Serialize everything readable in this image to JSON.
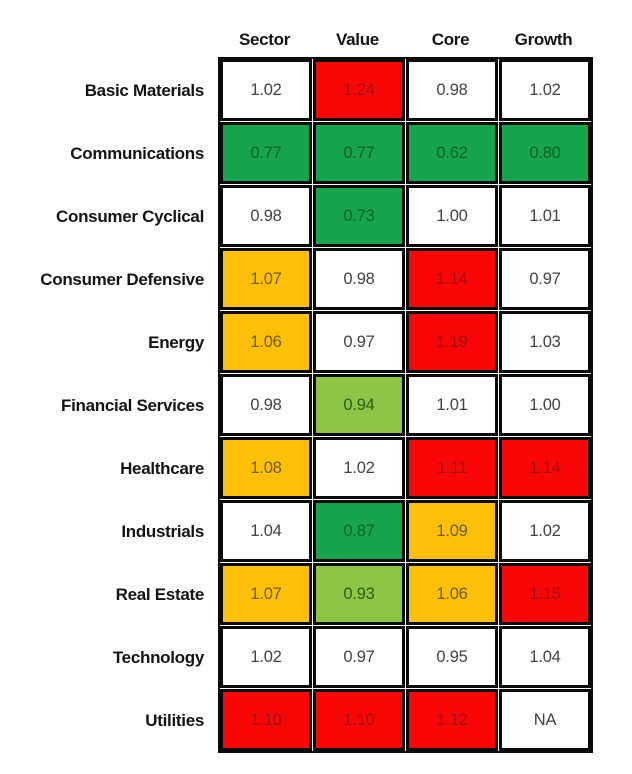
{
  "chart_data": {
    "type": "heatmap",
    "columns": [
      "Sector",
      "Value",
      "Core",
      "Growth"
    ],
    "rows": [
      {
        "label": "Basic Materials",
        "values": [
          "1.02",
          "1.24",
          "0.98",
          "1.02"
        ],
        "colors": [
          "white",
          "red",
          "white",
          "white"
        ]
      },
      {
        "label": "Communications",
        "values": [
          "0.77",
          "0.77",
          "0.62",
          "0.80"
        ],
        "colors": [
          "green",
          "green",
          "green",
          "green"
        ]
      },
      {
        "label": "Consumer Cyclical",
        "values": [
          "0.98",
          "0.73",
          "1.00",
          "1.01"
        ],
        "colors": [
          "white",
          "green",
          "white",
          "white"
        ]
      },
      {
        "label": "Consumer Defensive",
        "values": [
          "1.07",
          "0.98",
          "1.14",
          "0.97"
        ],
        "colors": [
          "amber",
          "white",
          "red",
          "white"
        ]
      },
      {
        "label": "Energy",
        "values": [
          "1.06",
          "0.97",
          "1.19",
          "1.03"
        ],
        "colors": [
          "amber",
          "white",
          "red",
          "white"
        ]
      },
      {
        "label": "Financial Services",
        "values": [
          "0.98",
          "0.94",
          "1.01",
          "1.00"
        ],
        "colors": [
          "white",
          "lightgreen",
          "white",
          "white"
        ]
      },
      {
        "label": "Healthcare",
        "values": [
          "1.08",
          "1.02",
          "1.11",
          "1.14"
        ],
        "colors": [
          "amber",
          "white",
          "red",
          "red"
        ]
      },
      {
        "label": "Industrials",
        "values": [
          "1.04",
          "0.87",
          "1.09",
          "1.02"
        ],
        "colors": [
          "white",
          "green",
          "amber",
          "white"
        ]
      },
      {
        "label": "Real Estate",
        "values": [
          "1.07",
          "0.93",
          "1.06",
          "1.15"
        ],
        "colors": [
          "amber",
          "lightgreen",
          "amber",
          "red"
        ]
      },
      {
        "label": "Technology",
        "values": [
          "1.02",
          "0.97",
          "0.95",
          "1.04"
        ],
        "colors": [
          "white",
          "white",
          "white",
          "white"
        ]
      },
      {
        "label": "Utilities",
        "values": [
          "1.10",
          "1.10",
          "1.12",
          "NA"
        ],
        "colors": [
          "red",
          "red",
          "red",
          "white"
        ]
      }
    ],
    "cell_palette": {
      "white": {
        "bg": "#FFFFFF",
        "text": "#424242"
      },
      "red": {
        "bg": "#F90707",
        "text": "#9E1010"
      },
      "green": {
        "bg": "#16A54C",
        "text": "#0B6428"
      },
      "lightgreen": {
        "bg": "#8CC644",
        "text": "#2F5D10"
      },
      "amber": {
        "bg": "#FDC008",
        "text": "#6F5A0A"
      }
    },
    "border_color": "#0A0A0A",
    "legend_position": "none",
    "grid": true
  }
}
